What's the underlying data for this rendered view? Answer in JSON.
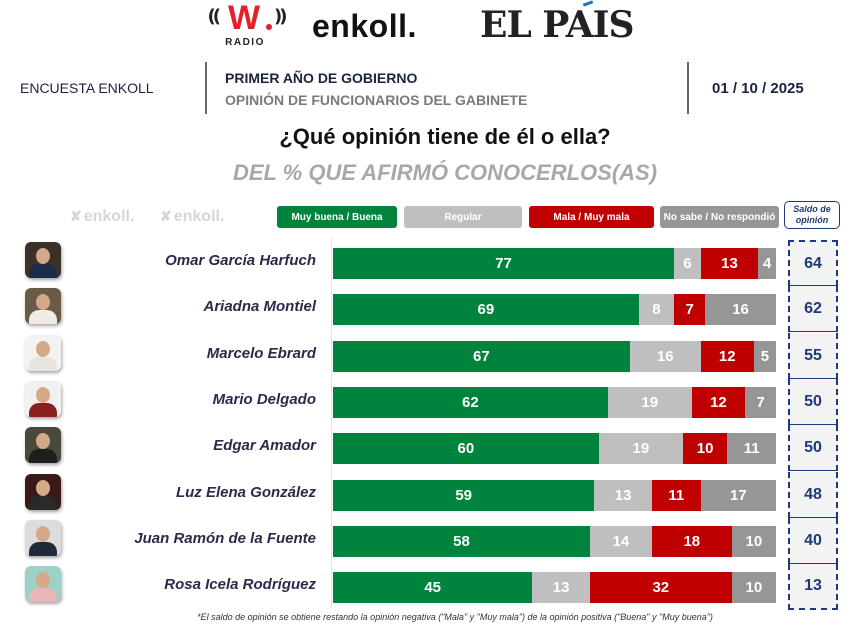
{
  "logos": {
    "wradio": {
      "mark": "W",
      "sub": "RADIO",
      "waves_left": "((",
      "waves_right": "))"
    },
    "enkoll": "enkoll.",
    "elpais": "EL PAIS"
  },
  "header": {
    "survey_label": "ENCUESTA ENKOLL",
    "title": "PRIMER AÑO DE GOBIERNO",
    "subtitle": "OPINIÓN DE FUNCIONARIOS DEL GABINETE",
    "date": "01 / 10 / 2025"
  },
  "question": "¿Qué opinión tiene de él o ella?",
  "subquestion": "DEL % QUE AFIRMÓ CONOCERLOS(AS)",
  "watermark": "enkoll.",
  "colors": {
    "positive": "#00843d",
    "regular": "#bfbfbf",
    "negative": "#c00000",
    "no_answer": "#969696",
    "saldo": "#1f3a78"
  },
  "footnote": "*El saldo de opinión se obtiene restando la opinión negativa (\"Mala\" y \"Muy mala\") de la opinión positiva (\"Buena\" y \"Muy buena\")",
  "chart_data": {
    "type": "bar",
    "orientation": "horizontal",
    "stacked": true,
    "title": "¿Qué opinión tiene de él o ella?",
    "subtitle": "DEL % QUE AFIRMÓ CONOCERLOS(AS)",
    "xlabel": "",
    "ylabel": "",
    "xlim": [
      0,
      100
    ],
    "grid": false,
    "legend_position": "top",
    "categories": [
      "Omar García Harfuch",
      "Ariadna Montiel",
      "Marcelo Ebrard",
      "Mario Delgado",
      "Edgar Amador",
      "Luz Elena González",
      "Juan Ramón de la Fuente",
      "Rosa Icela Rodríguez"
    ],
    "series": [
      {
        "name": "Muy buena / Buena",
        "color": "#00843d",
        "values": [
          77,
          69,
          67,
          62,
          60,
          59,
          58,
          45
        ]
      },
      {
        "name": "Regular",
        "color": "#bfbfbf",
        "values": [
          6,
          8,
          16,
          19,
          19,
          13,
          14,
          13
        ]
      },
      {
        "name": "Mala / Muy mala",
        "color": "#c00000",
        "values": [
          13,
          7,
          12,
          12,
          10,
          11,
          18,
          32
        ]
      },
      {
        "name": "No sabe / No respondió",
        "color": "#969696",
        "values": [
          4,
          16,
          5,
          7,
          11,
          17,
          10,
          10
        ]
      }
    ],
    "saldo": {
      "label": "Saldo de opinión",
      "values": [
        64,
        62,
        55,
        50,
        50,
        48,
        40,
        13
      ]
    }
  }
}
